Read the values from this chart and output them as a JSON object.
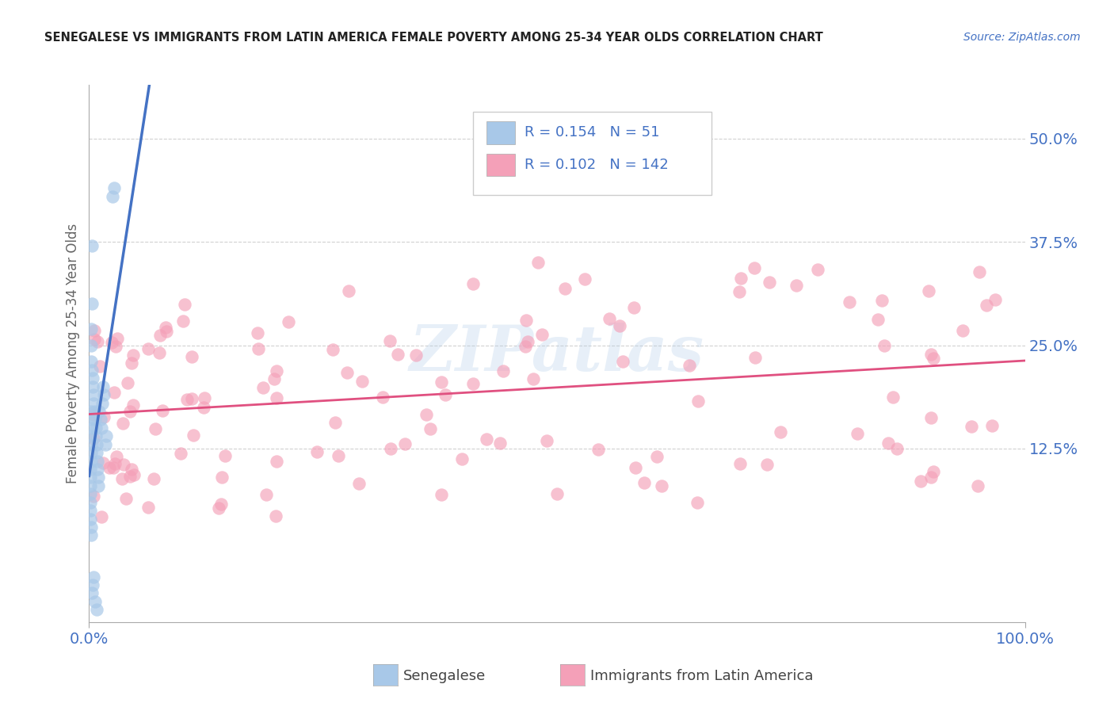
{
  "title": "SENEGALESE VS IMMIGRANTS FROM LATIN AMERICA FEMALE POVERTY AMONG 25-34 YEAR OLDS CORRELATION CHART",
  "source": "Source: ZipAtlas.com",
  "ylabel": "Female Poverty Among 25-34 Year Olds",
  "yticks": [
    "50.0%",
    "37.5%",
    "25.0%",
    "12.5%"
  ],
  "ytick_vals": [
    0.5,
    0.375,
    0.25,
    0.125
  ],
  "legend1_R": "0.154",
  "legend1_N": "51",
  "legend2_R": "0.102",
  "legend2_N": "142",
  "legend_label1": "Senegalese",
  "legend_label2": "Immigrants from Latin America",
  "color_blue": "#a8c8e8",
  "color_pink": "#f4a0b8",
  "color_blue_line": "#4472c4",
  "color_pink_line": "#e05080",
  "background_color": "#ffffff",
  "grid_color": "#cccccc",
  "xlim": [
    0.0,
    1.0
  ],
  "ylim": [
    -0.085,
    0.565
  ]
}
